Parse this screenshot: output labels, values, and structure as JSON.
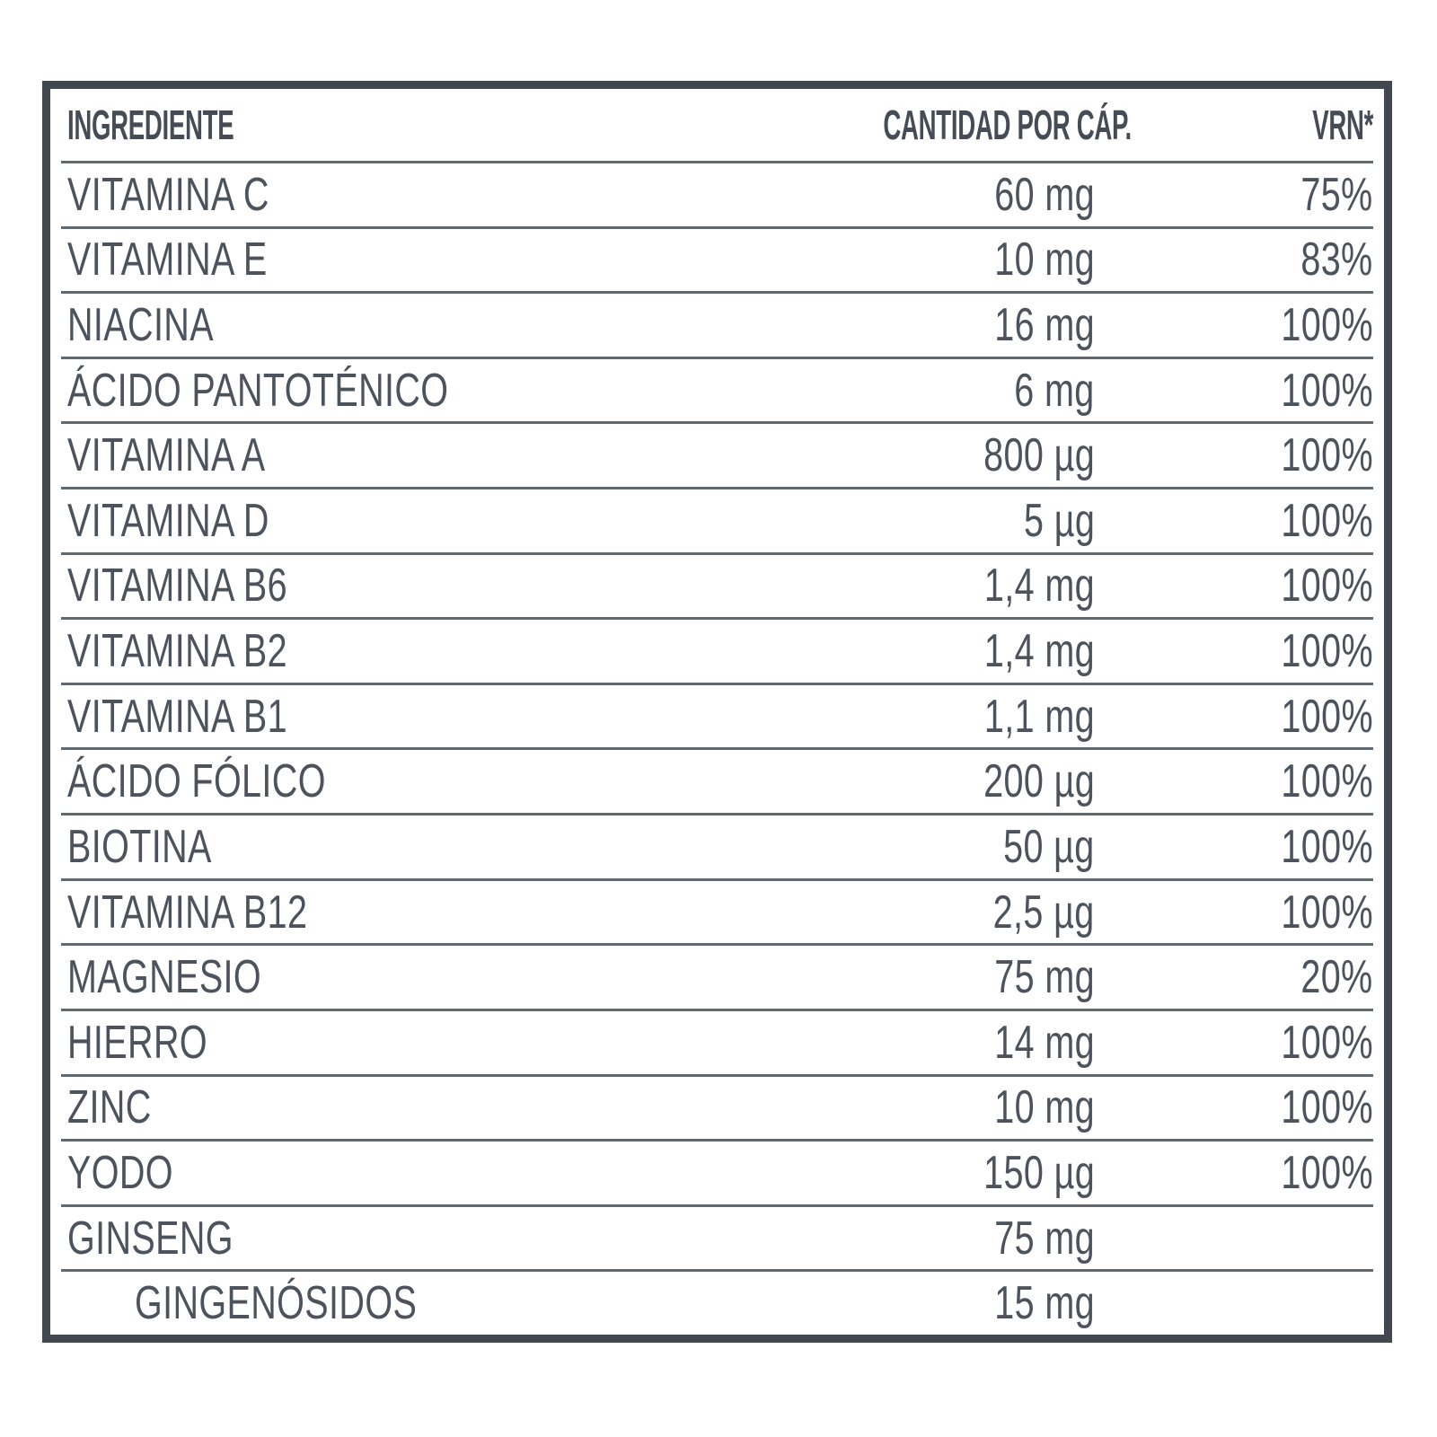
{
  "page": {
    "background": "#ffffff"
  },
  "table": {
    "headers": {
      "ingredient": "INGREDIENTE",
      "amount": "CANTIDAD POR CÁP.",
      "vrn": "VRN*"
    },
    "rows": [
      {
        "ingredient": "VITAMINA C",
        "amount": "60 mg",
        "vrn": "75%",
        "indent": false
      },
      {
        "ingredient": "VITAMINA E",
        "amount": "10 mg",
        "vrn": "83%",
        "indent": false
      },
      {
        "ingredient": "NIACINA",
        "amount": "16 mg",
        "vrn": "100%",
        "indent": false
      },
      {
        "ingredient": "ÁCIDO PANTOTÉNICO",
        "amount": "6 mg",
        "vrn": "100%",
        "indent": false
      },
      {
        "ingredient": "VITAMINA A",
        "amount": "800 µg",
        "vrn": "100%",
        "indent": false
      },
      {
        "ingredient": "VITAMINA D",
        "amount": "5 µg",
        "vrn": "100%",
        "indent": false
      },
      {
        "ingredient": "VITAMINA B6",
        "amount": "1,4 mg",
        "vrn": "100%",
        "indent": false
      },
      {
        "ingredient": "VITAMINA B2",
        "amount": "1,4 mg",
        "vrn": "100%",
        "indent": false
      },
      {
        "ingredient": "VITAMINA B1",
        "amount": "1,1 mg",
        "vrn": "100%",
        "indent": false
      },
      {
        "ingredient": "ÁCIDO FÓLICO",
        "amount": "200 µg",
        "vrn": "100%",
        "indent": false
      },
      {
        "ingredient": "BIOTINA",
        "amount": "50 µg",
        "vrn": "100%",
        "indent": false
      },
      {
        "ingredient": "VITAMINA B12",
        "amount": "2,5 µg",
        "vrn": "100%",
        "indent": false
      },
      {
        "ingredient": "MAGNESIO",
        "amount": "75 mg",
        "vrn": "20%",
        "indent": false
      },
      {
        "ingredient": "HIERRO",
        "amount": "14 mg",
        "vrn": "100%",
        "indent": false
      },
      {
        "ingredient": "ZINC",
        "amount": "10 mg",
        "vrn": "100%",
        "indent": false
      },
      {
        "ingredient": "YODO",
        "amount": "150 µg",
        "vrn": "100%",
        "indent": false
      },
      {
        "ingredient": "GINSENG",
        "amount": "75 mg",
        "vrn": "",
        "indent": false
      },
      {
        "ingredient": "GINGENÓSIDOS",
        "amount": "15 mg",
        "vrn": "",
        "indent": true
      }
    ],
    "colors": {
      "border": "#42484f",
      "text": "#4c535c",
      "header_text": "#464c55",
      "separator": "#61686f",
      "background": "#ffffff"
    }
  }
}
